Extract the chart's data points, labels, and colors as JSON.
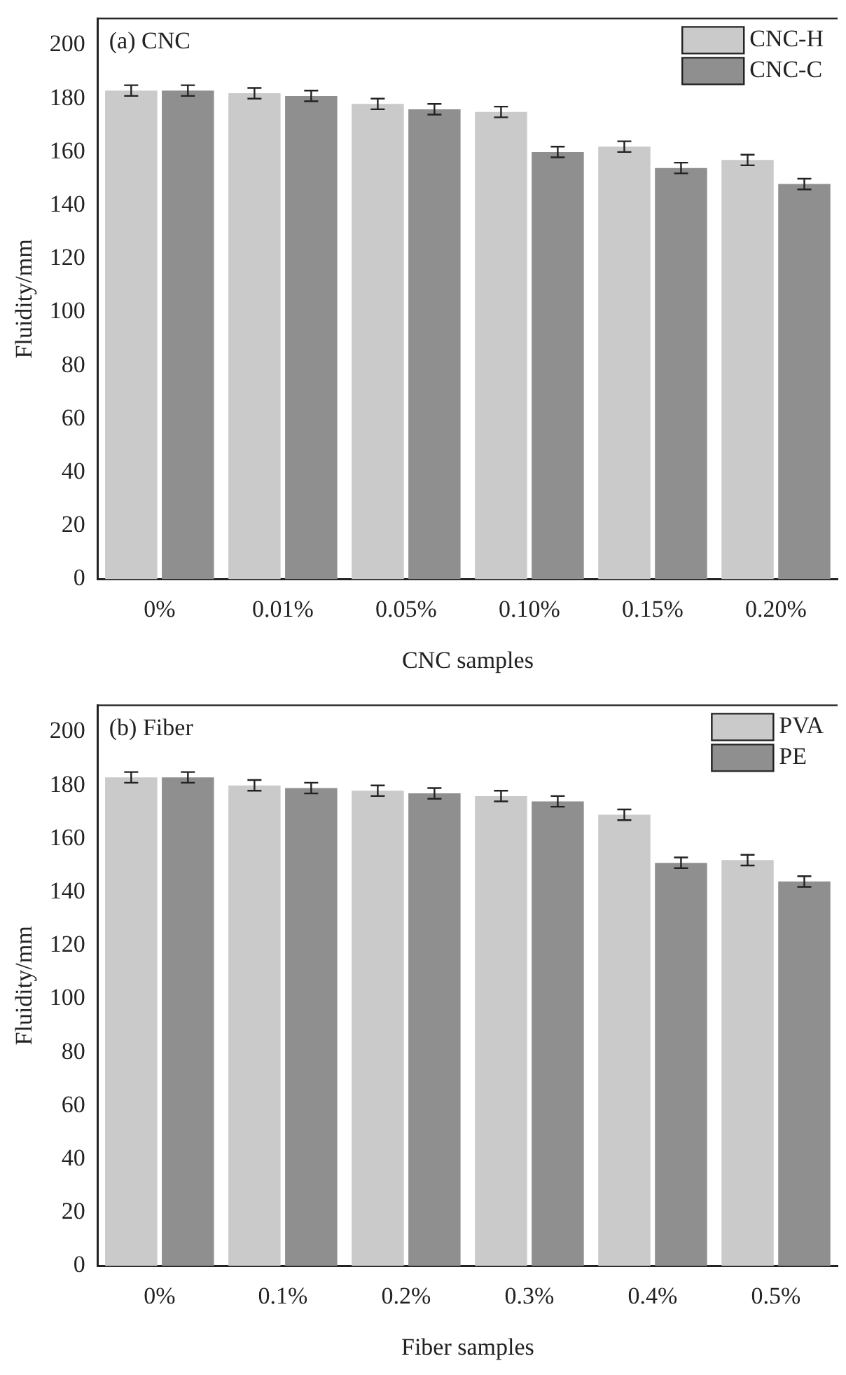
{
  "chart_data": [
    {
      "type": "bar",
      "title": "(a) CNC",
      "xlabel": "CNC samples",
      "ylabel": "Fluidity/mm",
      "categories": [
        "0%",
        "0.01%",
        "0.05%",
        "0.10%",
        "0.15%",
        "0.20%"
      ],
      "series": [
        {
          "name": "CNC-H",
          "color": "#cacaca",
          "values": [
            183,
            182,
            178,
            175,
            162,
            157
          ],
          "errors": [
            2,
            2,
            2,
            2,
            2,
            2
          ]
        },
        {
          "name": "CNC-C",
          "color": "#8f8f8f",
          "values": [
            183,
            181,
            176,
            160,
            154,
            148
          ],
          "errors": [
            2,
            2,
            2,
            2,
            2,
            2
          ]
        }
      ],
      "ylim": [
        0,
        210
      ],
      "yticks": [
        0,
        20,
        40,
        60,
        80,
        100,
        120,
        140,
        160,
        180,
        200
      ],
      "grid": false,
      "legend": "top right"
    },
    {
      "type": "bar",
      "title": "(b) Fiber",
      "xlabel": "Fiber samples",
      "ylabel": "Fluidity/mm",
      "categories": [
        "0%",
        "0.1%",
        "0.2%",
        "0.3%",
        "0.4%",
        "0.5%"
      ],
      "series": [
        {
          "name": "PVA",
          "color": "#cacaca",
          "values": [
            183,
            180,
            178,
            176,
            169,
            152
          ],
          "errors": [
            2,
            2,
            2,
            2,
            2,
            2
          ]
        },
        {
          "name": "PE",
          "color": "#8f8f8f",
          "values": [
            183,
            179,
            177,
            174,
            151,
            144
          ],
          "errors": [
            2,
            2,
            2,
            2,
            2,
            2
          ]
        }
      ],
      "ylim": [
        0,
        210
      ],
      "yticks": [
        0,
        20,
        40,
        60,
        80,
        100,
        120,
        140,
        160,
        180,
        200
      ],
      "grid": false,
      "legend": "top right"
    }
  ]
}
